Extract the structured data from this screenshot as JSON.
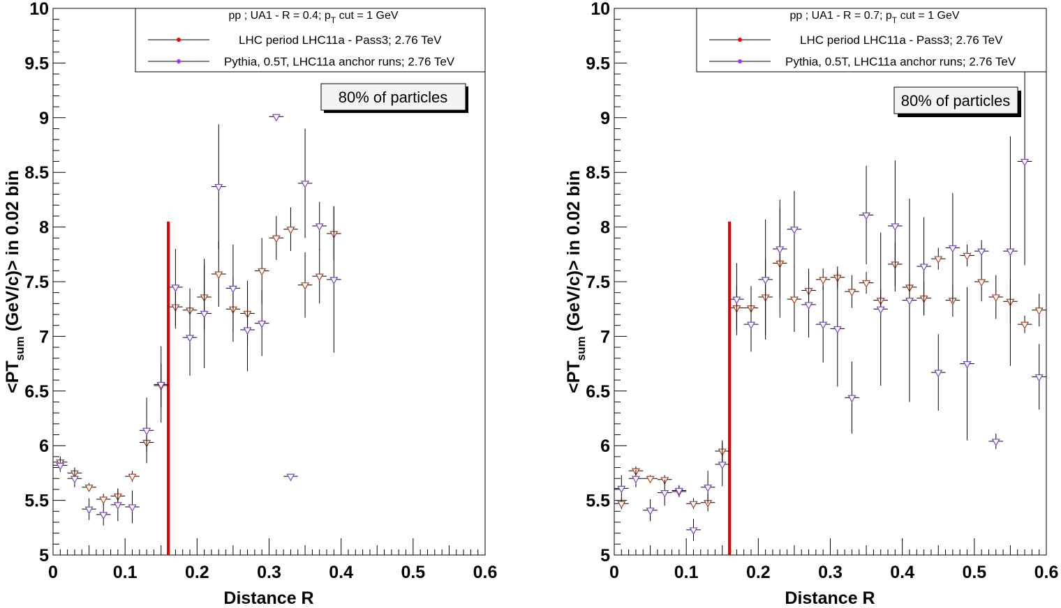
{
  "colors": {
    "lhc": "#ff0000",
    "pythia": "#9933ff",
    "marker_fill": "#ffffff",
    "cut_line": "#e00000",
    "data_edge_lhc": "#b04020",
    "data_edge_pythia": "#7744cc"
  },
  "chart_data": [
    {
      "type": "scatter",
      "xlabel": "Distance R",
      "ylabel_parts": {
        "pre": "<PT",
        "sub": "sum",
        "post": " (GeV/c)> in 0.02 bin"
      },
      "xlim": [
        0,
        0.6
      ],
      "ylim": [
        5,
        10
      ],
      "xticks": [
        "0",
        "0.1",
        "0.2",
        "0.3",
        "0.4",
        "0.5",
        "0.6"
      ],
      "yticks": [
        "5",
        "5.5",
        "6",
        "6.5",
        "7",
        "7.5",
        "8",
        "8.5",
        "9",
        "9.5",
        "10"
      ],
      "legend": {
        "header_pre": "pp ; UA1 - R = 0.4; p",
        "header_sub": "T",
        "header_post": " cut = 1 GeV",
        "entries": [
          "LHC period LHC11a - Pass3; 2.76 TeV",
          "Pythia, 0.5T, LHC11a anchor runs; 2.76 TeV"
        ]
      },
      "annotation": "80% of particles",
      "cut_line_x": 0.16,
      "series": [
        {
          "name": "LHC period LHC11a - Pass3; 2.76 TeV",
          "points": [
            [
              0.01,
              5.85,
              0.05
            ],
            [
              0.03,
              5.75,
              0.05
            ],
            [
              0.05,
              5.62,
              0.04
            ],
            [
              0.07,
              5.51,
              0.05
            ],
            [
              0.09,
              5.54,
              0.06
            ],
            [
              0.11,
              5.72,
              0.05
            ],
            [
              0.13,
              6.03,
              0.09
            ],
            [
              0.15,
              6.55,
              0.2
            ],
            [
              0.17,
              7.27,
              0.2
            ],
            [
              0.19,
              7.24,
              0.2
            ],
            [
              0.21,
              7.36,
              0.3
            ],
            [
              0.23,
              7.57,
              0.3
            ],
            [
              0.25,
              7.25,
              0.3
            ],
            [
              0.27,
              7.21,
              0.3
            ],
            [
              0.29,
              7.6,
              0.3
            ],
            [
              0.31,
              7.9,
              0.2
            ],
            [
              0.33,
              7.98,
              0.2
            ],
            [
              0.35,
              7.47,
              0.3
            ],
            [
              0.37,
              7.55,
              0.25
            ],
            [
              0.39,
              7.94,
              0.25
            ]
          ]
        },
        {
          "name": "Pythia, 0.5T, LHC11a anchor runs; 2.76 TeV",
          "points": [
            [
              0.01,
              5.82,
              0.06
            ],
            [
              0.03,
              5.7,
              0.08
            ],
            [
              0.05,
              5.42,
              0.1
            ],
            [
              0.07,
              5.37,
              0.1
            ],
            [
              0.09,
              5.46,
              0.15
            ],
            [
              0.11,
              5.44,
              0.15
            ],
            [
              0.13,
              6.14,
              0.3
            ],
            [
              0.15,
              6.56,
              0.35
            ],
            [
              0.17,
              7.45,
              0.35
            ],
            [
              0.19,
              6.99,
              0.35
            ],
            [
              0.21,
              7.21,
              0.5
            ],
            [
              0.23,
              8.37,
              0.57
            ],
            [
              0.25,
              7.44,
              0.4
            ],
            [
              0.27,
              7.06,
              0.38
            ],
            [
              0.29,
              7.12,
              0.3
            ],
            [
              0.31,
              9.01,
              0
            ],
            [
              0.33,
              5.72,
              0
            ],
            [
              0.35,
              8.4,
              0.5
            ],
            [
              0.37,
              8.01,
              0.22
            ],
            [
              0.39,
              7.52,
              0.67
            ]
          ]
        }
      ]
    },
    {
      "type": "scatter",
      "xlabel": "Distance R",
      "ylabel_parts": {
        "pre": "<PT",
        "sub": "sum",
        "post": " (GeV/c)> in 0.02 bin"
      },
      "xlim": [
        0,
        0.6
      ],
      "ylim": [
        5,
        10
      ],
      "xticks": [
        "0",
        "0.1",
        "0.2",
        "0.3",
        "0.4",
        "0.5",
        "0.6"
      ],
      "yticks": [
        "5",
        "5.5",
        "6",
        "6.5",
        "7",
        "7.5",
        "8",
        "8.5",
        "9",
        "9.5",
        "10"
      ],
      "legend": {
        "header_pre": "pp ; UA1 - R = 0.7; p",
        "header_sub": "T",
        "header_post": " cut = 1 GeV",
        "entries": [
          "LHC period LHC11a - Pass3; 2.76 TeV",
          "Pythia, 0.5T, LHC11a anchor runs; 2.76 TeV"
        ]
      },
      "annotation": "80% of particles",
      "cut_line_x": 0.16,
      "series": [
        {
          "name": "LHC period LHC11a - Pass3; 2.76 TeV",
          "points": [
            [
              0.01,
              5.47,
              0.05
            ],
            [
              0.03,
              5.77,
              0.04
            ],
            [
              0.05,
              5.7,
              0.03
            ],
            [
              0.07,
              5.69,
              0.04
            ],
            [
              0.09,
              5.58,
              0.05
            ],
            [
              0.11,
              5.47,
              0.05
            ],
            [
              0.13,
              5.48,
              0.08
            ],
            [
              0.15,
              5.95,
              0.1
            ],
            [
              0.17,
              7.26,
              0.2
            ],
            [
              0.19,
              7.26,
              0.2
            ],
            [
              0.21,
              7.36,
              0.35
            ],
            [
              0.23,
              7.67,
              0.5
            ],
            [
              0.25,
              7.34,
              0.3
            ],
            [
              0.27,
              7.42,
              0.2
            ],
            [
              0.29,
              7.52,
              0.1
            ],
            [
              0.31,
              7.54,
              0.1
            ],
            [
              0.33,
              7.41,
              0.15
            ],
            [
              0.35,
              7.49,
              0.1
            ],
            [
              0.37,
              7.33,
              0.1
            ],
            [
              0.39,
              7.66,
              0.2
            ],
            [
              0.41,
              7.45,
              0.1
            ],
            [
              0.43,
              7.35,
              0.15
            ],
            [
              0.45,
              7.71,
              0.1
            ],
            [
              0.47,
              7.33,
              0.15
            ],
            [
              0.49,
              7.74,
              0.1
            ],
            [
              0.51,
              7.5,
              0.18
            ],
            [
              0.53,
              7.36,
              0.2
            ],
            [
              0.55,
              7.32,
              0.2
            ],
            [
              0.57,
              7.11,
              0.08
            ],
            [
              0.59,
              7.24,
              0.15
            ]
          ]
        },
        {
          "name": "Pythia, 0.5T, LHC11a anchor runs; 2.76 TeV",
          "points": [
            [
              0.01,
              5.61,
              0.12
            ],
            [
              0.03,
              5.7,
              0.08
            ],
            [
              0.05,
              5.41,
              0.1
            ],
            [
              0.07,
              5.57,
              0.12
            ],
            [
              0.09,
              5.59,
              0.05
            ],
            [
              0.11,
              5.23,
              0.1
            ],
            [
              0.13,
              5.62,
              0.15
            ],
            [
              0.15,
              5.83,
              0.2
            ],
            [
              0.17,
              7.34,
              0.33
            ],
            [
              0.19,
              7.11,
              0.25
            ],
            [
              0.21,
              7.52,
              0.55
            ],
            [
              0.23,
              7.8,
              0.45
            ],
            [
              0.25,
              7.98,
              0.35
            ],
            [
              0.27,
              7.29,
              0.3
            ],
            [
              0.29,
              7.11,
              0.35
            ],
            [
              0.31,
              7.07,
              0.53
            ],
            [
              0.33,
              6.44,
              0.33
            ],
            [
              0.35,
              8.11,
              0.45
            ],
            [
              0.37,
              7.25,
              0.7
            ],
            [
              0.39,
              8.01,
              0.6
            ],
            [
              0.41,
              7.33,
              0.93
            ],
            [
              0.43,
              7.64,
              0.45
            ],
            [
              0.45,
              6.67,
              0.35
            ],
            [
              0.47,
              7.81,
              0.5
            ],
            [
              0.49,
              6.75,
              0.7
            ],
            [
              0.51,
              7.78,
              0.1
            ],
            [
              0.53,
              6.04,
              0.07
            ],
            [
              0.55,
              7.78,
              1.05
            ],
            [
              0.57,
              8.6,
              0.95
            ],
            [
              0.59,
              6.63,
              0.3
            ]
          ]
        }
      ]
    }
  ]
}
